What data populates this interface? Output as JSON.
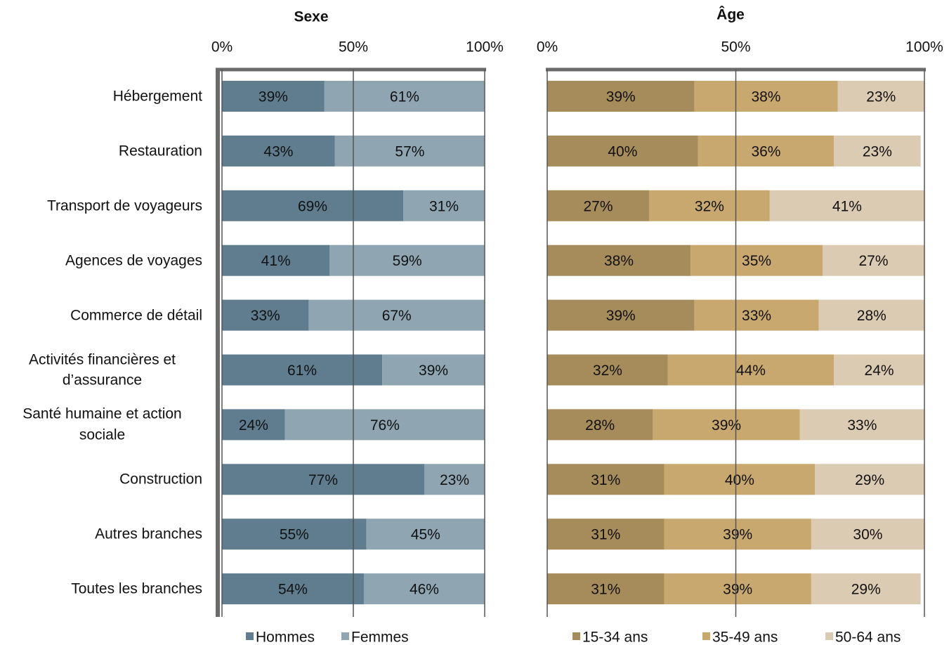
{
  "chart_data": [
    {
      "type": "bar",
      "stacked": true,
      "orientation": "horizontal",
      "title": "Sexe",
      "categories": [
        "Hébergement",
        "Restauration",
        "Transport de voyageurs",
        "Agences de voyages",
        "Commerce de détail",
        "Activités financières et d’assurance",
        "Santé humaine et action sociale",
        "Construction",
        "Autres branches",
        "Toutes les branches"
      ],
      "series": [
        {
          "name": "Hommes",
          "color": "#5f7d8f",
          "values": [
            39,
            43,
            69,
            41,
            33,
            61,
            24,
            77,
            55,
            54
          ],
          "value_labels": [
            "39%",
            "43%",
            "69%",
            "41%",
            "33%",
            "61%",
            "24%",
            "77%",
            "55%",
            "54%"
          ]
        },
        {
          "name": "Femmes",
          "color": "#8fa5b2",
          "values": [
            61,
            57,
            31,
            59,
            67,
            39,
            76,
            23,
            45,
            46
          ],
          "value_labels": [
            "61%",
            "57%",
            "31%",
            "59%",
            "67%",
            "39%",
            "76%",
            "23%",
            "45%",
            "46%"
          ]
        }
      ],
      "xlim": [
        0,
        100
      ],
      "xticks": [
        {
          "value": 0,
          "label": "0%"
        },
        {
          "value": 50,
          "label": "50%"
        },
        {
          "value": 100,
          "label": "100%"
        }
      ],
      "grid": true
    },
    {
      "type": "bar",
      "stacked": true,
      "orientation": "horizontal",
      "title": "Âge",
      "series": [
        {
          "name": "15-34 ans",
          "color": "#a68b5b",
          "values": [
            39,
            40,
            27,
            38,
            39,
            32,
            28,
            31,
            31,
            31
          ],
          "value_labels": [
            "39%",
            "40%",
            "27%",
            "38%",
            "39%",
            "32%",
            "28%",
            "31%",
            "31%",
            "31%"
          ]
        },
        {
          "name": "35-49 ans",
          "color": "#c9a870",
          "values": [
            38,
            36,
            32,
            35,
            33,
            44,
            39,
            40,
            39,
            39
          ],
          "value_labels": [
            "38%",
            "36%",
            "32%",
            "35%",
            "33%",
            "44%",
            "39%",
            "40%",
            "39%",
            "39%"
          ]
        },
        {
          "name": "50-64 ans",
          "color": "#dccbb3",
          "values": [
            23,
            23,
            41,
            27,
            28,
            24,
            33,
            29,
            30,
            29
          ],
          "value_labels": [
            "23%",
            "23%",
            "41%",
            "27%",
            "28%",
            "24%",
            "33%",
            "29%",
            "30%",
            "29%"
          ]
        }
      ],
      "xlim": [
        0,
        100
      ],
      "xticks": [
        {
          "value": 0,
          "label": "0%"
        },
        {
          "value": 50,
          "label": "50%"
        },
        {
          "value": 100,
          "label": "100%"
        }
      ],
      "grid": true
    }
  ]
}
